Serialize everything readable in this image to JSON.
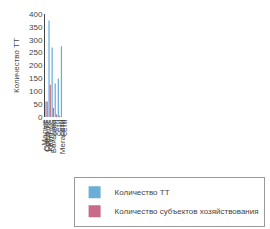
{
  "chart_data": {
    "type": "bar",
    "categories": [
      "Одна ТТ",
      "Малые\nсети",
      "Средние\nсети",
      "Крупные\nсети",
      "Большие\nсети",
      "Мегасети"
    ],
    "series": [
      {
        "name": "Количество ТТ",
        "color": "#6baed6",
        "values": [
          60,
          375,
          270,
          130,
          150,
          275
        ]
      },
      {
        "name": "Количество субъектов хозяйствования",
        "color": "#c96a8a",
        "values": [
          60,
          125,
          35,
          10,
          5,
          0
        ]
      }
    ],
    "ylabel": "Количество ТТ",
    "ylim": [
      0,
      400
    ],
    "yticks": [
      0,
      50,
      100,
      150,
      200,
      250,
      300,
      350,
      400
    ],
    "grid": false,
    "legend": "lower right"
  }
}
